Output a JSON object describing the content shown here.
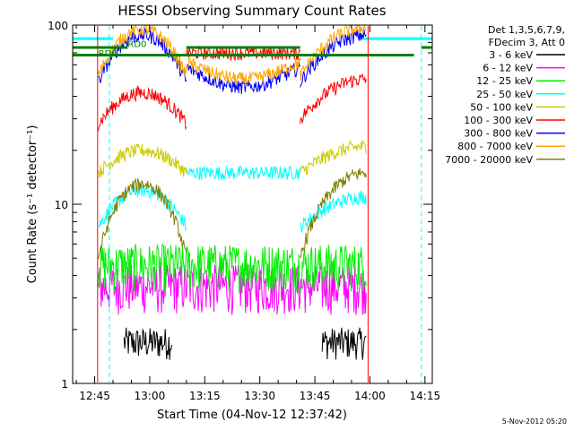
{
  "chart_data": {
    "type": "line",
    "title": "HESSI Observing Summary Count Rates",
    "xlabel": "Start Time (04-Nov-12 12:37:42)",
    "ylabel": "Count Rate (s⁻¹ detector⁻¹)",
    "yscale": "log",
    "ylim": [
      1,
      100
    ],
    "xlim_minutes_after_1245": [
      -6,
      92
    ],
    "x_ticks": [
      {
        "label": "12:45",
        "minutes": 0
      },
      {
        "label": "13:00",
        "minutes": 15
      },
      {
        "label": "13:15",
        "minutes": 30
      },
      {
        "label": "13:30",
        "minutes": 45
      },
      {
        "label": "13:45",
        "minutes": 60
      },
      {
        "label": "14:00",
        "minutes": 75
      },
      {
        "label": "14:15",
        "minutes": 90
      }
    ],
    "y_ticks": [
      {
        "label": "1",
        "value": 1
      },
      {
        "label": "10",
        "value": 10
      },
      {
        "label": "100",
        "value": 100
      }
    ],
    "legend_header": [
      "Det 1,3,5,6,7,9,",
      "FDecim 3, Att 0"
    ],
    "series": [
      {
        "name": "3 - 6 keV",
        "color": "#000000",
        "visible_segments": [
          {
            "x": [
              8,
              21
            ],
            "base": 1.7,
            "amp": 0.35
          },
          {
            "x": [
              62,
              74
            ],
            "base": 1.7,
            "amp": 0.35
          }
        ]
      },
      {
        "name": "6 - 12 keV",
        "color": "#ff00ff",
        "visible_segments": [
          {
            "x": [
              1,
              74
            ],
            "base": 3.5,
            "amp": 1.1
          }
        ]
      },
      {
        "name": "12 - 25 keV",
        "color": "#00ee00",
        "visible_segments": [
          {
            "x": [
              1,
              74
            ],
            "base": 4.6,
            "amp": 1.4
          }
        ]
      },
      {
        "name": "25 - 50 keV",
        "color": "#00ffff",
        "visible_segments": [
          {
            "x": [
              1,
              25
            ],
            "base": 7.5,
            "peak": 12,
            "shape": "hump"
          },
          {
            "x": [
              25,
              56
            ],
            "base": 15,
            "shape": "flat"
          },
          {
            "x": [
              56,
              74
            ],
            "base": 7.5,
            "peak": 11,
            "shape": "rise"
          }
        ]
      },
      {
        "name": "50 - 100 keV",
        "color": "#cccc00",
        "visible_segments": [
          {
            "x": [
              1,
              25
            ],
            "base": 15,
            "peak": 20,
            "shape": "hump"
          },
          {
            "x": [
              56,
              74
            ],
            "base": 15,
            "peak": 21,
            "shape": "rise"
          }
        ]
      },
      {
        "name": "100 - 300 keV",
        "color": "#ff0000",
        "visible_segments": [
          {
            "x": [
              1,
              25
            ],
            "base": 28,
            "peak": 42,
            "shape": "hump"
          },
          {
            "x": [
              25,
              56
            ],
            "base": 70,
            "shape": "flat"
          },
          {
            "x": [
              56,
              74
            ],
            "base": 30,
            "peak": 50,
            "shape": "rise"
          }
        ]
      },
      {
        "name": "300 - 800 keV",
        "color": "#0000ff",
        "visible_segments": [
          {
            "x": [
              1,
              25
            ],
            "base": 48,
            "peak": 88,
            "shape": "hump"
          },
          {
            "x": [
              25,
              56
            ],
            "base": 45,
            "peak": 58,
            "shape": "bowl"
          },
          {
            "x": [
              56,
              74
            ],
            "base": 48,
            "peak": 88,
            "shape": "rise"
          }
        ]
      },
      {
        "name": "800 - 7000 keV",
        "color": "#ffa500",
        "visible_segments": [
          {
            "x": [
              1,
              25
            ],
            "base": 52,
            "peak": 95,
            "shape": "hump"
          },
          {
            "x": [
              25,
              56
            ],
            "base": 50,
            "peak": 62,
            "shape": "bowl"
          },
          {
            "x": [
              56,
              74
            ],
            "base": 52,
            "peak": 97,
            "shape": "rise"
          }
        ]
      },
      {
        "name": "7000 - 20000 keV",
        "color": "#808000",
        "visible_segments": [
          {
            "x": [
              1,
              25
            ],
            "base": 5.0,
            "peak": 13,
            "shape": "hump"
          },
          {
            "x": [
              56,
              74
            ],
            "base": 5.0,
            "peak": 15,
            "shape": "rise"
          }
        ]
      }
    ],
    "annotations": [
      {
        "label": "RD0",
        "x_minutes": 9,
        "value": 79,
        "color": "#008000"
      },
      {
        "label": "RD6",
        "x_minutes": 1,
        "value": 70,
        "color": "#008000"
      }
    ],
    "flag_lines": [
      {
        "kind": "saa_bar",
        "color": "#00ffff",
        "value": 84,
        "x": [
          [
            -6,
            5
          ],
          [
            73,
            92
          ]
        ]
      },
      {
        "kind": "night_bar",
        "color": "#008000",
        "value": 75,
        "x": [
          [
            -6,
            9
          ],
          [
            25,
            56
          ],
          [
            89,
            92
          ]
        ]
      },
      {
        "kind": "night_bar",
        "color": "#008000",
        "value": 68,
        "x": [
          [
            -6,
            87
          ]
        ]
      },
      {
        "kind": "vertical_dashed",
        "color": "#00ffff",
        "x_minutes": [
          4,
          89
        ]
      },
      {
        "kind": "vertical_solid",
        "color": "#ff0000",
        "x_minutes": [
          0.8,
          74.5
        ]
      }
    ]
  },
  "footer": {
    "timestamp": "5-Nov-2012 05:20"
  }
}
